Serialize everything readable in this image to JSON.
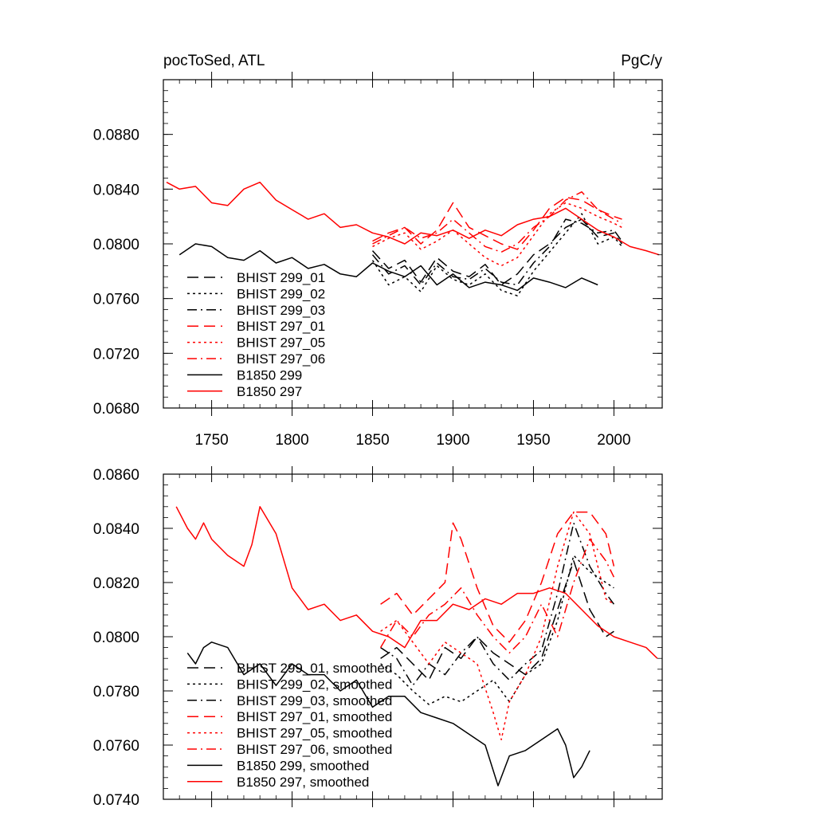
{
  "chart_data": [
    {
      "type": "line",
      "title_left": "pocToSed, ATL",
      "title_right": "PgC/y",
      "xlabel": "",
      "ylabel": "",
      "xlim": [
        1720,
        2030
      ],
      "ylim": [
        0.068,
        0.092
      ],
      "x_ticks": [
        1750,
        1800,
        1850,
        1900,
        1950,
        2000
      ],
      "x_tick_labels": [
        "1750",
        "1800",
        "1850",
        "1900",
        "1950",
        "2000"
      ],
      "y_ticks": [
        0.068,
        0.072,
        0.076,
        0.08,
        0.084,
        0.088
      ],
      "y_tick_labels": [
        "0.0680",
        "0.0720",
        "0.0760",
        "0.0800",
        "0.0840",
        "0.0880"
      ],
      "legend_position": "lower-left",
      "series": [
        {
          "name": "BHIST 299_01",
          "color": "#000000",
          "dash": "dashed",
          "x": [
            1850,
            1860,
            1870,
            1880,
            1890,
            1900,
            1910,
            1920,
            1930,
            1940,
            1950,
            1960,
            1970,
            1980,
            1990,
            2000,
            2005
          ],
          "values": [
            0.0795,
            0.0782,
            0.0788,
            0.0772,
            0.079,
            0.078,
            0.0776,
            0.0785,
            0.077,
            0.0778,
            0.0792,
            0.08,
            0.0812,
            0.0818,
            0.0805,
            0.0808,
            0.08
          ]
        },
        {
          "name": "BHIST 299_02",
          "color": "#000000",
          "dash": "dotted",
          "x": [
            1850,
            1860,
            1870,
            1880,
            1890,
            1900,
            1910,
            1920,
            1930,
            1940,
            1950,
            1960,
            1970,
            1980,
            1990,
            2000,
            2005
          ],
          "values": [
            0.0788,
            0.077,
            0.0776,
            0.0765,
            0.0784,
            0.0774,
            0.077,
            0.0778,
            0.0766,
            0.0762,
            0.078,
            0.0794,
            0.0808,
            0.0822,
            0.08,
            0.0805,
            0.0798
          ]
        },
        {
          "name": "BHIST 299_03",
          "color": "#000000",
          "dash": "dashdot",
          "x": [
            1850,
            1860,
            1870,
            1880,
            1890,
            1900,
            1910,
            1920,
            1930,
            1940,
            1950,
            1960,
            1970,
            1980,
            1990,
            2000,
            2005
          ],
          "values": [
            0.0792,
            0.0778,
            0.0784,
            0.077,
            0.0786,
            0.0776,
            0.0774,
            0.0782,
            0.0772,
            0.077,
            0.0786,
            0.0798,
            0.0818,
            0.0815,
            0.0808,
            0.081,
            0.0802
          ]
        },
        {
          "name": "BHIST 297_01",
          "color": "#ff0000",
          "dash": "dashed",
          "x": [
            1850,
            1860,
            1870,
            1880,
            1890,
            1900,
            1910,
            1920,
            1930,
            1940,
            1950,
            1960,
            1970,
            1980,
            1990,
            2000,
            2005
          ],
          "values": [
            0.0802,
            0.0808,
            0.0812,
            0.08,
            0.081,
            0.083,
            0.0812,
            0.0806,
            0.08,
            0.0796,
            0.081,
            0.0826,
            0.0834,
            0.0832,
            0.0825,
            0.082,
            0.0818
          ]
        },
        {
          "name": "BHIST 297_05",
          "color": "#ff0000",
          "dash": "dotted",
          "x": [
            1850,
            1860,
            1870,
            1880,
            1890,
            1900,
            1910,
            1920,
            1930,
            1940,
            1950,
            1960,
            1970,
            1980,
            1990,
            2000,
            2005
          ],
          "values": [
            0.0798,
            0.0804,
            0.0808,
            0.0796,
            0.0802,
            0.081,
            0.08,
            0.079,
            0.0784,
            0.079,
            0.0806,
            0.0822,
            0.083,
            0.0826,
            0.082,
            0.0815,
            0.0812
          ]
        },
        {
          "name": "BHIST 297_06",
          "color": "#ff0000",
          "dash": "dashdot",
          "x": [
            1850,
            1860,
            1870,
            1880,
            1890,
            1900,
            1910,
            1920,
            1930,
            1940,
            1950,
            1960,
            1970,
            1980,
            1990,
            2000,
            2005
          ],
          "values": [
            0.08,
            0.0806,
            0.0812,
            0.0804,
            0.0808,
            0.0818,
            0.0808,
            0.0798,
            0.0794,
            0.08,
            0.0812,
            0.082,
            0.0832,
            0.0838,
            0.0825,
            0.0818,
            0.0815
          ]
        },
        {
          "name": "B1850 299",
          "color": "#000000",
          "dash": "solid",
          "x": [
            1730,
            1740,
            1750,
            1760,
            1770,
            1780,
            1790,
            1800,
            1810,
            1820,
            1830,
            1840,
            1850,
            1860,
            1870,
            1880,
            1890,
            1900,
            1910,
            1920,
            1930,
            1940,
            1950,
            1960,
            1970,
            1980,
            1990
          ],
          "values": [
            0.0792,
            0.08,
            0.0798,
            0.079,
            0.0788,
            0.0795,
            0.0786,
            0.079,
            0.0782,
            0.0785,
            0.0778,
            0.0776,
            0.0786,
            0.078,
            0.0776,
            0.0784,
            0.077,
            0.0778,
            0.0768,
            0.0772,
            0.077,
            0.0766,
            0.0775,
            0.0772,
            0.0768,
            0.0775,
            0.077
          ]
        },
        {
          "name": "B1850 297",
          "color": "#ff0000",
          "dash": "solid",
          "x": [
            1722,
            1730,
            1740,
            1750,
            1760,
            1770,
            1780,
            1790,
            1800,
            1810,
            1820,
            1830,
            1840,
            1850,
            1860,
            1870,
            1880,
            1890,
            1900,
            1910,
            1920,
            1930,
            1940,
            1950,
            1960,
            1970,
            1980,
            1990,
            2000,
            2010,
            2020,
            2028
          ],
          "values": [
            0.0845,
            0.084,
            0.0842,
            0.083,
            0.0828,
            0.084,
            0.0845,
            0.0832,
            0.0825,
            0.0818,
            0.0822,
            0.0812,
            0.0814,
            0.0808,
            0.0805,
            0.08,
            0.0808,
            0.0806,
            0.081,
            0.0804,
            0.081,
            0.0806,
            0.0814,
            0.0818,
            0.082,
            0.0826,
            0.0818,
            0.081,
            0.0805,
            0.0798,
            0.0795,
            0.0792
          ]
        }
      ]
    },
    {
      "type": "line",
      "title_left": "",
      "title_right": "",
      "xlabel": "",
      "ylabel": "",
      "xlim": [
        1720,
        2030
      ],
      "ylim": [
        0.074,
        0.086
      ],
      "x_ticks": [
        1750,
        1800,
        1850,
        1900,
        1950,
        2000
      ],
      "x_tick_labels": [],
      "y_ticks": [
        0.074,
        0.076,
        0.078,
        0.08,
        0.082,
        0.084,
        0.086
      ],
      "y_tick_labels": [
        "0.0740",
        "0.0760",
        "0.0780",
        "0.0800",
        "0.0820",
        "0.0840",
        "0.0860"
      ],
      "legend_position": "lower-left",
      "series": [
        {
          "name": "BHIST 299_01, smoothed",
          "color": "#000000",
          "dash": "dashed",
          "x": [
            1855,
            1865,
            1875,
            1885,
            1895,
            1905,
            1915,
            1925,
            1935,
            1945,
            1955,
            1965,
            1975,
            1985,
            1995,
            2000
          ],
          "values": [
            0.0792,
            0.0796,
            0.079,
            0.0784,
            0.0796,
            0.0792,
            0.08,
            0.0794,
            0.079,
            0.0786,
            0.0792,
            0.081,
            0.0828,
            0.081,
            0.08,
            0.0802
          ]
        },
        {
          "name": "BHIST 299_02, smoothed",
          "color": "#000000",
          "dash": "dotted",
          "x": [
            1855,
            1865,
            1875,
            1885,
            1895,
            1905,
            1915,
            1925,
            1935,
            1945,
            1955,
            1965,
            1975,
            1985,
            1995,
            2000
          ],
          "values": [
            0.079,
            0.0786,
            0.078,
            0.0775,
            0.0778,
            0.0776,
            0.078,
            0.0784,
            0.0776,
            0.0786,
            0.079,
            0.0806,
            0.083,
            0.0824,
            0.082,
            0.0818
          ]
        },
        {
          "name": "BHIST 299_03, smoothed",
          "color": "#000000",
          "dash": "dashdot",
          "x": [
            1855,
            1865,
            1875,
            1885,
            1895,
            1905,
            1915,
            1925,
            1935,
            1945,
            1955,
            1965,
            1975,
            1985,
            1995,
            2000
          ],
          "values": [
            0.0796,
            0.0792,
            0.0782,
            0.079,
            0.0786,
            0.0794,
            0.08,
            0.079,
            0.0784,
            0.079,
            0.0795,
            0.0816,
            0.0842,
            0.0826,
            0.0816,
            0.0812
          ]
        },
        {
          "name": "BHIST 297_01, smoothed",
          "color": "#ff0000",
          "dash": "dashed",
          "x": [
            1855,
            1865,
            1875,
            1885,
            1895,
            1900,
            1905,
            1915,
            1925,
            1935,
            1945,
            1955,
            1965,
            1975,
            1985,
            1995,
            2000
          ],
          "values": [
            0.0812,
            0.0816,
            0.0808,
            0.0814,
            0.082,
            0.0842,
            0.0836,
            0.0818,
            0.0804,
            0.0798,
            0.0806,
            0.082,
            0.0838,
            0.0846,
            0.0846,
            0.0838,
            0.0826
          ]
        },
        {
          "name": "BHIST 297_05, smoothed",
          "color": "#ff0000",
          "dash": "dotted",
          "x": [
            1855,
            1865,
            1875,
            1885,
            1895,
            1905,
            1915,
            1925,
            1930,
            1935,
            1945,
            1955,
            1965,
            1975,
            1985,
            1995,
            2000
          ],
          "values": [
            0.0802,
            0.0806,
            0.0798,
            0.079,
            0.0798,
            0.0794,
            0.079,
            0.0772,
            0.0762,
            0.0776,
            0.0786,
            0.08,
            0.0826,
            0.0846,
            0.0838,
            0.0814,
            0.0812
          ]
        },
        {
          "name": "BHIST 297_06, smoothed",
          "color": "#ff0000",
          "dash": "dashdot",
          "x": [
            1855,
            1865,
            1875,
            1885,
            1895,
            1905,
            1915,
            1925,
            1935,
            1945,
            1955,
            1965,
            1975,
            1985,
            1995,
            2000
          ],
          "values": [
            0.0796,
            0.0806,
            0.08,
            0.0808,
            0.0812,
            0.0818,
            0.0808,
            0.08,
            0.0794,
            0.08,
            0.0812,
            0.08,
            0.082,
            0.0836,
            0.0828,
            0.0822
          ]
        },
        {
          "name": "B1850 299, smoothed",
          "color": "#000000",
          "dash": "solid",
          "x": [
            1735,
            1740,
            1745,
            1750,
            1760,
            1770,
            1780,
            1790,
            1800,
            1810,
            1820,
            1830,
            1840,
            1850,
            1860,
            1870,
            1880,
            1890,
            1900,
            1910,
            1920,
            1928,
            1935,
            1945,
            1955,
            1965,
            1970,
            1975,
            1980,
            1985
          ],
          "values": [
            0.0794,
            0.079,
            0.0796,
            0.0798,
            0.0796,
            0.0786,
            0.079,
            0.0782,
            0.079,
            0.0786,
            0.0786,
            0.078,
            0.0784,
            0.0774,
            0.0778,
            0.0778,
            0.0772,
            0.077,
            0.0768,
            0.0764,
            0.076,
            0.0745,
            0.0756,
            0.0758,
            0.0762,
            0.0766,
            0.076,
            0.0748,
            0.0752,
            0.0758
          ]
        },
        {
          "name": "B1850 297, smoothed",
          "color": "#ff0000",
          "dash": "solid",
          "x": [
            1728,
            1735,
            1740,
            1745,
            1750,
            1760,
            1770,
            1775,
            1780,
            1790,
            1800,
            1810,
            1820,
            1830,
            1840,
            1850,
            1860,
            1870,
            1880,
            1890,
            1900,
            1910,
            1920,
            1930,
            1940,
            1950,
            1960,
            1970,
            1980,
            1990,
            2000,
            2010,
            2020,
            2027
          ],
          "values": [
            0.0848,
            0.084,
            0.0836,
            0.0842,
            0.0836,
            0.083,
            0.0826,
            0.0834,
            0.0848,
            0.0838,
            0.0818,
            0.081,
            0.0812,
            0.0806,
            0.0808,
            0.0802,
            0.08,
            0.0796,
            0.0806,
            0.0806,
            0.0812,
            0.081,
            0.0814,
            0.0812,
            0.0816,
            0.0816,
            0.0818,
            0.0816,
            0.081,
            0.0804,
            0.08,
            0.0798,
            0.0796,
            0.0792
          ]
        }
      ]
    }
  ]
}
